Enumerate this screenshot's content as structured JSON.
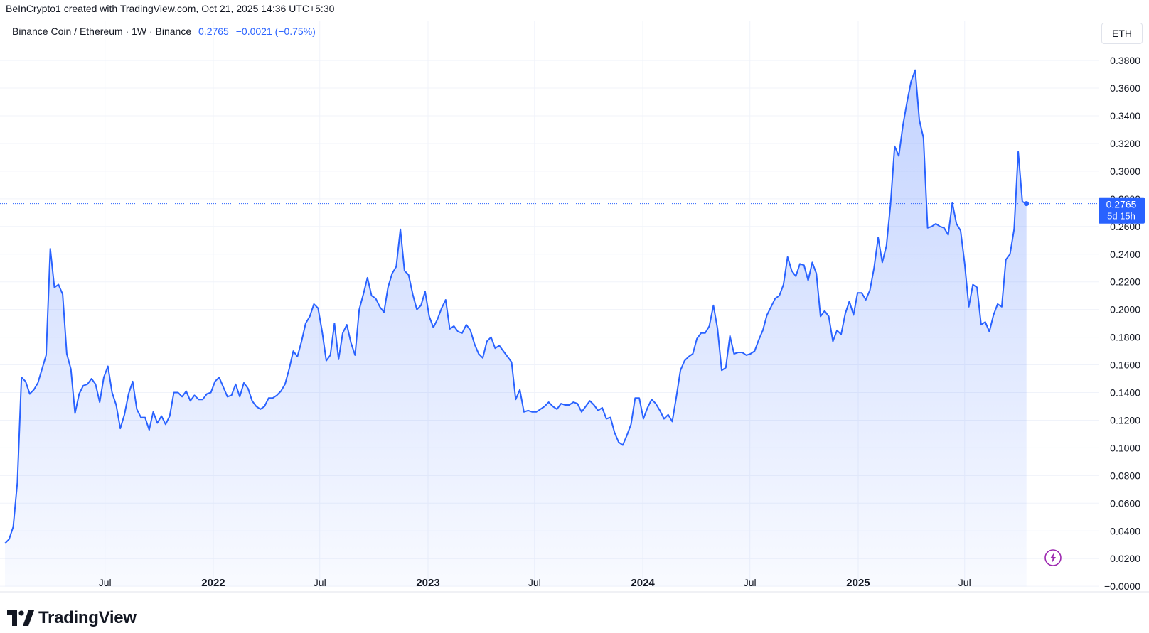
{
  "header": {
    "credit": "BeInCrypto1 created with TradingView.com, Oct 21, 2025 14:36 UTC+5:30",
    "symbol": "Binance Coin / Ethereum · 1W · Binance",
    "price": "0.2765",
    "change": "−0.0021 (−0.75%)",
    "currency": "ETH"
  },
  "price_tag": {
    "value": "0.2765",
    "countdown": "5d 15h"
  },
  "brand": {
    "name": "TradingView",
    "icon": "tradingview-logo-icon"
  },
  "colors": {
    "line": "#2962ff",
    "accent": "#2962ff",
    "grid": "#f0f3fa",
    "bolt": "#9c27b0"
  },
  "chart_data": {
    "type": "area",
    "y_tick_labels": [
      "0.3800",
      "0.3600",
      "0.3400",
      "0.3200",
      "0.3000",
      "0.2800",
      "0.2600",
      "0.2400",
      "0.2200",
      "0.2000",
      "0.1800",
      "0.1600",
      "0.1400",
      "0.1200",
      "0.1000",
      "0.0800",
      "0.0600",
      "0.0400",
      "0.0200",
      "−0.0000"
    ],
    "x_tick_labels": [
      {
        "label": "Jul",
        "date": "2021-07-01",
        "bold": false
      },
      {
        "label": "2022",
        "date": "2022-01-01",
        "bold": true
      },
      {
        "label": "Jul",
        "date": "2022-07-01",
        "bold": false
      },
      {
        "label": "2023",
        "date": "2023-01-01",
        "bold": true
      },
      {
        "label": "Jul",
        "date": "2023-07-01",
        "bold": false
      },
      {
        "label": "2024",
        "date": "2024-01-01",
        "bold": true
      },
      {
        "label": "Jul",
        "date": "2024-07-01",
        "bold": false
      },
      {
        "label": "2025",
        "date": "2025-01-01",
        "bold": true
      },
      {
        "label": "Jul",
        "date": "2025-07-01",
        "bold": false
      }
    ],
    "ylim": [
      -0.003,
      0.397
    ],
    "xlim": [
      "2021-01-12",
      "2025-12-09"
    ],
    "last_value": 0.2765,
    "grid": true,
    "series": [
      {
        "points": [
          [
            "2021-01-12",
            0.031
          ],
          [
            "2021-01-19",
            0.034
          ],
          [
            "2021-01-26",
            0.043
          ],
          [
            "2021-02-02",
            0.075
          ],
          [
            "2021-02-09",
            0.151
          ],
          [
            "2021-02-16",
            0.148
          ],
          [
            "2021-02-23",
            0.139
          ],
          [
            "2021-03-02",
            0.142
          ],
          [
            "2021-03-09",
            0.147
          ],
          [
            "2021-03-16",
            0.157
          ],
          [
            "2021-03-23",
            0.167
          ],
          [
            "2021-03-30",
            0.244
          ],
          [
            "2021-04-06",
            0.216
          ],
          [
            "2021-04-13",
            0.218
          ],
          [
            "2021-04-20",
            0.211
          ],
          [
            "2021-04-27",
            0.168
          ],
          [
            "2021-05-04",
            0.157
          ],
          [
            "2021-05-11",
            0.125
          ],
          [
            "2021-05-18",
            0.139
          ],
          [
            "2021-05-25",
            0.145
          ],
          [
            "2021-06-01",
            0.146
          ],
          [
            "2021-06-08",
            0.15
          ],
          [
            "2021-06-15",
            0.146
          ],
          [
            "2021-06-22",
            0.133
          ],
          [
            "2021-06-29",
            0.151
          ],
          [
            "2021-07-06",
            0.159
          ],
          [
            "2021-07-13",
            0.14
          ],
          [
            "2021-07-20",
            0.131
          ],
          [
            "2021-07-27",
            0.114
          ],
          [
            "2021-08-03",
            0.124
          ],
          [
            "2021-08-10",
            0.139
          ],
          [
            "2021-08-17",
            0.148
          ],
          [
            "2021-08-24",
            0.128
          ],
          [
            "2021-08-31",
            0.122
          ],
          [
            "2021-09-07",
            0.122
          ],
          [
            "2021-09-14",
            0.113
          ],
          [
            "2021-09-21",
            0.126
          ],
          [
            "2021-09-28",
            0.118
          ],
          [
            "2021-10-05",
            0.123
          ],
          [
            "2021-10-12",
            0.117
          ],
          [
            "2021-10-19",
            0.123
          ],
          [
            "2021-10-26",
            0.14
          ],
          [
            "2021-11-02",
            0.14
          ],
          [
            "2021-11-09",
            0.137
          ],
          [
            "2021-11-16",
            0.141
          ],
          [
            "2021-11-23",
            0.134
          ],
          [
            "2021-11-30",
            0.138
          ],
          [
            "2021-12-07",
            0.135
          ],
          [
            "2021-12-14",
            0.135
          ],
          [
            "2021-12-21",
            0.139
          ],
          [
            "2021-12-28",
            0.14
          ],
          [
            "2022-01-04",
            0.148
          ],
          [
            "2022-01-11",
            0.151
          ],
          [
            "2022-01-18",
            0.144
          ],
          [
            "2022-01-25",
            0.137
          ],
          [
            "2022-02-01",
            0.138
          ],
          [
            "2022-02-08",
            0.146
          ],
          [
            "2022-02-15",
            0.137
          ],
          [
            "2022-02-22",
            0.147
          ],
          [
            "2022-03-01",
            0.143
          ],
          [
            "2022-03-08",
            0.134
          ],
          [
            "2022-03-15",
            0.13
          ],
          [
            "2022-03-22",
            0.128
          ],
          [
            "2022-03-29",
            0.13
          ],
          [
            "2022-04-05",
            0.136
          ],
          [
            "2022-04-12",
            0.136
          ],
          [
            "2022-04-19",
            0.138
          ],
          [
            "2022-04-26",
            0.141
          ],
          [
            "2022-05-03",
            0.146
          ],
          [
            "2022-05-10",
            0.157
          ],
          [
            "2022-05-17",
            0.17
          ],
          [
            "2022-05-24",
            0.166
          ],
          [
            "2022-05-31",
            0.177
          ],
          [
            "2022-06-07",
            0.19
          ],
          [
            "2022-06-14",
            0.195
          ],
          [
            "2022-06-21",
            0.204
          ],
          [
            "2022-06-28",
            0.201
          ],
          [
            "2022-07-05",
            0.184
          ],
          [
            "2022-07-12",
            0.163
          ],
          [
            "2022-07-19",
            0.167
          ],
          [
            "2022-07-26",
            0.19
          ],
          [
            "2022-08-02",
            0.164
          ],
          [
            "2022-08-09",
            0.183
          ],
          [
            "2022-08-16",
            0.189
          ],
          [
            "2022-08-23",
            0.176
          ],
          [
            "2022-08-30",
            0.167
          ],
          [
            "2022-09-06",
            0.2
          ],
          [
            "2022-09-13",
            0.211
          ],
          [
            "2022-09-20",
            0.223
          ],
          [
            "2022-09-27",
            0.21
          ],
          [
            "2022-10-04",
            0.208
          ],
          [
            "2022-10-11",
            0.202
          ],
          [
            "2022-10-18",
            0.198
          ],
          [
            "2022-10-25",
            0.216
          ],
          [
            "2022-11-01",
            0.226
          ],
          [
            "2022-11-08",
            0.231
          ],
          [
            "2022-11-15",
            0.258
          ],
          [
            "2022-11-22",
            0.228
          ],
          [
            "2022-11-29",
            0.225
          ],
          [
            "2022-12-06",
            0.211
          ],
          [
            "2022-12-13",
            0.2
          ],
          [
            "2022-12-20",
            0.203
          ],
          [
            "2022-12-27",
            0.213
          ],
          [
            "2023-01-03",
            0.195
          ],
          [
            "2023-01-10",
            0.187
          ],
          [
            "2023-01-17",
            0.193
          ],
          [
            "2023-01-24",
            0.201
          ],
          [
            "2023-01-31",
            0.207
          ],
          [
            "2023-02-07",
            0.186
          ],
          [
            "2023-02-14",
            0.188
          ],
          [
            "2023-02-21",
            0.184
          ],
          [
            "2023-02-28",
            0.183
          ],
          [
            "2023-03-07",
            0.189
          ],
          [
            "2023-03-14",
            0.185
          ],
          [
            "2023-03-21",
            0.175
          ],
          [
            "2023-03-28",
            0.168
          ],
          [
            "2023-04-04",
            0.165
          ],
          [
            "2023-04-11",
            0.177
          ],
          [
            "2023-04-18",
            0.18
          ],
          [
            "2023-04-25",
            0.172
          ],
          [
            "2023-05-02",
            0.174
          ],
          [
            "2023-05-09",
            0.17
          ],
          [
            "2023-05-16",
            0.166
          ],
          [
            "2023-05-23",
            0.162
          ],
          [
            "2023-05-30",
            0.135
          ],
          [
            "2023-06-06",
            0.142
          ],
          [
            "2023-06-13",
            0.126
          ],
          [
            "2023-06-20",
            0.127
          ],
          [
            "2023-06-27",
            0.126
          ],
          [
            "2023-07-04",
            0.126
          ],
          [
            "2023-07-11",
            0.128
          ],
          [
            "2023-07-18",
            0.13
          ],
          [
            "2023-07-25",
            0.133
          ],
          [
            "2023-08-01",
            0.13
          ],
          [
            "2023-08-08",
            0.128
          ],
          [
            "2023-08-15",
            0.132
          ],
          [
            "2023-08-22",
            0.131
          ],
          [
            "2023-08-29",
            0.131
          ],
          [
            "2023-09-05",
            0.133
          ],
          [
            "2023-09-12",
            0.132
          ],
          [
            "2023-09-19",
            0.126
          ],
          [
            "2023-09-26",
            0.13
          ],
          [
            "2023-10-03",
            0.134
          ],
          [
            "2023-10-10",
            0.131
          ],
          [
            "2023-10-17",
            0.127
          ],
          [
            "2023-10-24",
            0.129
          ],
          [
            "2023-10-31",
            0.121
          ],
          [
            "2023-11-07",
            0.122
          ],
          [
            "2023-11-14",
            0.111
          ],
          [
            "2023-11-21",
            0.104
          ],
          [
            "2023-11-28",
            0.102
          ],
          [
            "2023-12-05",
            0.109
          ],
          [
            "2023-12-12",
            0.117
          ],
          [
            "2023-12-19",
            0.136
          ],
          [
            "2023-12-26",
            0.136
          ],
          [
            "2024-01-02",
            0.121
          ],
          [
            "2024-01-09",
            0.129
          ],
          [
            "2024-01-16",
            0.135
          ],
          [
            "2024-01-23",
            0.132
          ],
          [
            "2024-01-30",
            0.127
          ],
          [
            "2024-02-06",
            0.121
          ],
          [
            "2024-02-13",
            0.124
          ],
          [
            "2024-02-20",
            0.119
          ],
          [
            "2024-02-27",
            0.137
          ],
          [
            "2024-03-05",
            0.156
          ],
          [
            "2024-03-12",
            0.163
          ],
          [
            "2024-03-19",
            0.166
          ],
          [
            "2024-03-26",
            0.168
          ],
          [
            "2024-04-02",
            0.179
          ],
          [
            "2024-04-09",
            0.183
          ],
          [
            "2024-04-16",
            0.183
          ],
          [
            "2024-04-23",
            0.188
          ],
          [
            "2024-04-30",
            0.203
          ],
          [
            "2024-05-07",
            0.186
          ],
          [
            "2024-05-14",
            0.156
          ],
          [
            "2024-05-21",
            0.158
          ],
          [
            "2024-05-28",
            0.181
          ],
          [
            "2024-06-04",
            0.168
          ],
          [
            "2024-06-11",
            0.169
          ],
          [
            "2024-06-18",
            0.169
          ],
          [
            "2024-06-25",
            0.167
          ],
          [
            "2024-07-02",
            0.168
          ],
          [
            "2024-07-09",
            0.17
          ],
          [
            "2024-07-16",
            0.178
          ],
          [
            "2024-07-23",
            0.185
          ],
          [
            "2024-07-30",
            0.196
          ],
          [
            "2024-08-06",
            0.202
          ],
          [
            "2024-08-13",
            0.208
          ],
          [
            "2024-08-20",
            0.21
          ],
          [
            "2024-08-27",
            0.218
          ],
          [
            "2024-09-03",
            0.238
          ],
          [
            "2024-09-10",
            0.228
          ],
          [
            "2024-09-17",
            0.224
          ],
          [
            "2024-09-24",
            0.233
          ],
          [
            "2024-10-01",
            0.232
          ],
          [
            "2024-10-08",
            0.221
          ],
          [
            "2024-10-15",
            0.234
          ],
          [
            "2024-10-22",
            0.226
          ],
          [
            "2024-10-29",
            0.195
          ],
          [
            "2024-11-05",
            0.199
          ],
          [
            "2024-11-12",
            0.195
          ],
          [
            "2024-11-19",
            0.177
          ],
          [
            "2024-11-26",
            0.185
          ],
          [
            "2024-12-03",
            0.182
          ],
          [
            "2024-12-10",
            0.197
          ],
          [
            "2024-12-17",
            0.206
          ],
          [
            "2024-12-24",
            0.196
          ],
          [
            "2024-12-31",
            0.212
          ],
          [
            "2025-01-07",
            0.212
          ],
          [
            "2025-01-14",
            0.207
          ],
          [
            "2025-01-21",
            0.214
          ],
          [
            "2025-01-28",
            0.23
          ],
          [
            "2025-02-04",
            0.252
          ],
          [
            "2025-02-11",
            0.234
          ],
          [
            "2025-02-18",
            0.246
          ],
          [
            "2025-02-25",
            0.276
          ],
          [
            "2025-03-04",
            0.318
          ],
          [
            "2025-03-11",
            0.311
          ],
          [
            "2025-03-18",
            0.333
          ],
          [
            "2025-03-25",
            0.35
          ],
          [
            "2025-04-01",
            0.365
          ],
          [
            "2025-04-08",
            0.373
          ],
          [
            "2025-04-15",
            0.337
          ],
          [
            "2025-04-22",
            0.324
          ],
          [
            "2025-04-29",
            0.259
          ],
          [
            "2025-05-06",
            0.26
          ],
          [
            "2025-05-13",
            0.262
          ],
          [
            "2025-05-20",
            0.26
          ],
          [
            "2025-05-27",
            0.259
          ],
          [
            "2025-06-03",
            0.254
          ],
          [
            "2025-06-10",
            0.277
          ],
          [
            "2025-06-17",
            0.262
          ],
          [
            "2025-06-24",
            0.257
          ],
          [
            "2025-07-01",
            0.233
          ],
          [
            "2025-07-08",
            0.202
          ],
          [
            "2025-07-15",
            0.218
          ],
          [
            "2025-07-22",
            0.216
          ],
          [
            "2025-07-29",
            0.189
          ],
          [
            "2025-08-05",
            0.191
          ],
          [
            "2025-08-12",
            0.184
          ],
          [
            "2025-08-19",
            0.196
          ],
          [
            "2025-08-26",
            0.204
          ],
          [
            "2025-09-02",
            0.202
          ],
          [
            "2025-09-09",
            0.236
          ],
          [
            "2025-09-16",
            0.24
          ],
          [
            "2025-09-23",
            0.258
          ],
          [
            "2025-09-30",
            0.314
          ],
          [
            "2025-10-07",
            0.278
          ],
          [
            "2025-10-14",
            0.2765
          ]
        ]
      }
    ]
  }
}
